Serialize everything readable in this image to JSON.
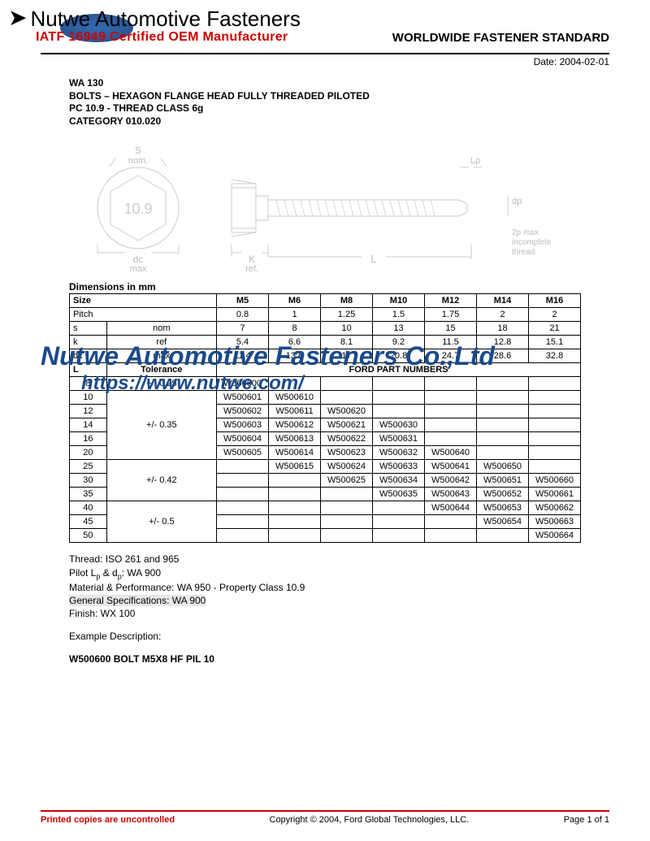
{
  "header": {
    "company_name": "Nutwe Automotive Fasteners",
    "iatf_text": "IATF 16949 Certified OEM Manufacturer",
    "std_title": "WORLDWIDE FASTENER STANDARD",
    "date": "Date: 2004-02-01"
  },
  "spec": {
    "code": "WA 130",
    "title": "BOLTS – HEXAGON FLANGE HEAD FULLY THREADED PILOTED",
    "pc": "PC 10.9 - THREAD CLASS 6g",
    "category": "CATEGORY 010.020"
  },
  "diagram": {
    "labels": {
      "s_nom": "S\nnom.",
      "marking": "10.9",
      "dc_max": "dc\nmax",
      "k_ref": "K\nref.",
      "L": "L",
      "Lp": "Lp",
      "dp": "dp",
      "thread_note": "2p max\nincomplete\nthread"
    },
    "stroke_color": "#cccccc",
    "text_color": "#bbbbbb"
  },
  "table": {
    "title": "Dimensions in mm",
    "headers": [
      "Size",
      "M5",
      "M6",
      "M8",
      "M10",
      "M12",
      "M14",
      "M16"
    ],
    "rows_top": [
      {
        "label": "Pitch",
        "sub": "",
        "values": [
          "0.8",
          "1",
          "1.25",
          "1.5",
          "1.75",
          "2",
          "2"
        ]
      },
      {
        "label": "s",
        "sub": "nom",
        "values": [
          "7",
          "8",
          "10",
          "13",
          "15",
          "18",
          "21"
        ]
      },
      {
        "label": "k",
        "sub": "ref",
        "values": [
          "5.4",
          "6.6",
          "8.1",
          "9.2",
          "11.5",
          "12.8",
          "15.1"
        ]
      },
      {
        "label": "dc",
        "sub": "max",
        "values": [
          "11.4",
          "13.6",
          "17",
          "20.8",
          "24.7",
          "28.6",
          "32.8"
        ]
      }
    ],
    "part_header": "FORD PART NUMBERS",
    "l_col": "L",
    "tol_col": "Tolerance",
    "part_rows": [
      {
        "L": "8",
        "tol": "+/- 0.25",
        "tol_span": 1,
        "parts": [
          "W500600",
          "",
          "",
          "",
          "",
          "",
          ""
        ]
      },
      {
        "L": "10",
        "tol": "+/- 0.35",
        "tol_span": 5,
        "parts": [
          "W500601",
          "W500610",
          "",
          "",
          "",
          "",
          ""
        ]
      },
      {
        "L": "12",
        "parts": [
          "W500602",
          "W500611",
          "W500620",
          "",
          "",
          "",
          ""
        ]
      },
      {
        "L": "14",
        "parts": [
          "W500603",
          "W500612",
          "W500621",
          "W500630",
          "",
          "",
          ""
        ]
      },
      {
        "L": "16",
        "parts": [
          "W500604",
          "W500613",
          "W500622",
          "W500631",
          "",
          "",
          ""
        ]
      },
      {
        "L": "20",
        "parts": [
          "W500605",
          "W500614",
          "W500623",
          "W500632",
          "W500640",
          "",
          ""
        ]
      },
      {
        "L": "25",
        "tol": "+/- 0.42",
        "tol_span": 3,
        "parts": [
          "",
          "W500615",
          "W500624",
          "W500633",
          "W500641",
          "W500650",
          ""
        ]
      },
      {
        "L": "30",
        "parts": [
          "",
          "",
          "W500625",
          "W500634",
          "W500642",
          "W500651",
          "W500660"
        ]
      },
      {
        "L": "35",
        "parts": [
          "",
          "",
          "",
          "W500635",
          "W500643",
          "W500652",
          "W500661"
        ]
      },
      {
        "L": "40",
        "tol": "+/- 0.5",
        "tol_span": 4,
        "parts": [
          "",
          "",
          "",
          "",
          "W500644",
          "W500653",
          "W500662"
        ]
      },
      {
        "L": "45",
        "parts": [
          "",
          "",
          "",
          "",
          "",
          "W500654",
          "W500663"
        ]
      },
      {
        "L": "50",
        "parts": [
          "",
          "",
          "",
          "",
          "",
          "",
          "W500664"
        ]
      }
    ]
  },
  "notes": {
    "thread": "Thread:  ISO 261 and 965",
    "pilot": "Pilot Lp & dp:  WA 900",
    "material": "Material & Performance:  WA 950 - Property Class 10.9",
    "general": "General Specifications:  WA 900",
    "finish": "Finish:  WX 100"
  },
  "example": {
    "label": "Example Description:",
    "desc": "W500600  BOLT  M5X8 HF PIL  10"
  },
  "watermark": {
    "company": "Nutwe Automotive Fasteners Co.,Ltd",
    "url": "https://www.nutwe.com/"
  },
  "footer": {
    "left": "Printed copies are uncontrolled",
    "center": "Copyright © 2004, Ford Global Technologies, LLC.",
    "right": "Page 1 of 1"
  }
}
